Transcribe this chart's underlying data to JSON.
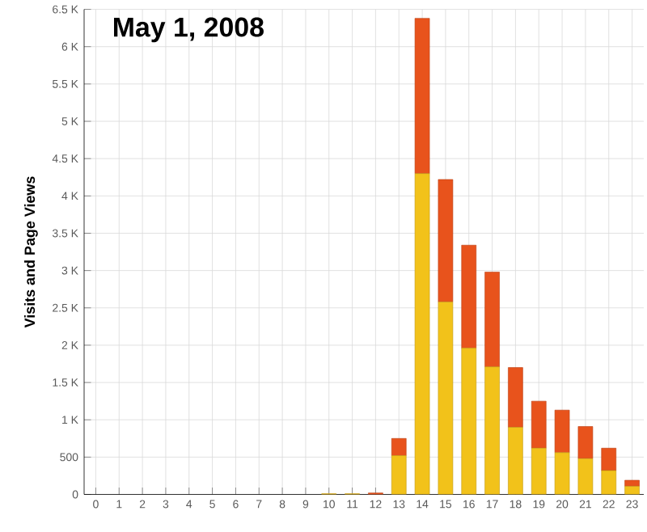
{
  "chart_data": {
    "type": "bar",
    "stacked": true,
    "title": "May 1, 2008",
    "ylabel": "Visits and Page Views",
    "categories": [
      "0",
      "1",
      "2",
      "3",
      "4",
      "5",
      "6",
      "7",
      "8",
      "9",
      "10",
      "11",
      "12",
      "13",
      "14",
      "15",
      "16",
      "17",
      "18",
      "19",
      "20",
      "21",
      "22",
      "23"
    ],
    "series": [
      {
        "color": "#f2c21a",
        "values": [
          0,
          0,
          0,
          0,
          0,
          0,
          0,
          0,
          0,
          0,
          10,
          10,
          0,
          520,
          4300,
          2580,
          1960,
          1710,
          900,
          620,
          560,
          480,
          320,
          110
        ]
      },
      {
        "color": "#e8531c",
        "values": [
          0,
          0,
          0,
          0,
          0,
          0,
          0,
          0,
          0,
          0,
          0,
          0,
          20,
          230,
          2080,
          1640,
          1380,
          1270,
          800,
          630,
          570,
          430,
          300,
          80
        ]
      }
    ],
    "ylim": [
      0,
      6500
    ],
    "yticks": [
      0,
      500,
      {
        "value": 1000,
        "label": "1 K"
      },
      {
        "value": 1500,
        "label": "1.5 K"
      },
      {
        "value": 2000,
        "label": "2 K"
      },
      {
        "value": 2500,
        "label": "2.5 K"
      },
      {
        "value": 3000,
        "label": "3 K"
      },
      {
        "value": 3500,
        "label": "3.5 K"
      },
      {
        "value": 4000,
        "label": "4 K"
      },
      {
        "value": 4500,
        "label": "4.5 K"
      },
      {
        "value": 5000,
        "label": "5 K"
      },
      {
        "value": 5500,
        "label": "5.5 K"
      },
      {
        "value": 6000,
        "label": "6 K"
      },
      {
        "value": 6500,
        "label": "6.5 K"
      }
    ],
    "grid": true
  }
}
